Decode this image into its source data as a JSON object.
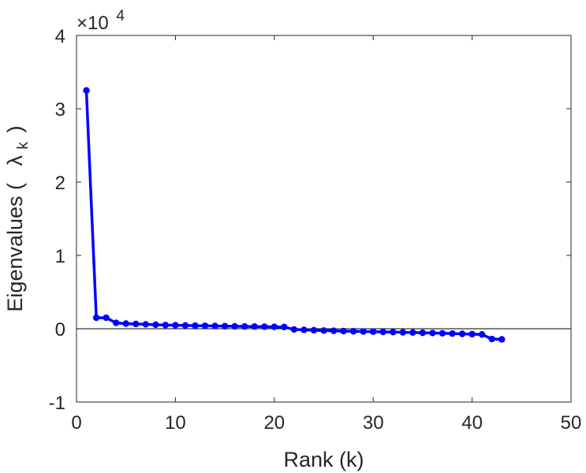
{
  "chart_data": {
    "type": "line",
    "title": "",
    "xlabel": "Rank (k)",
    "ylabel": {
      "prefix": "Eigenvalues (",
      "symbol": "λ",
      "subscript": "k",
      "suffix": ")"
    },
    "xlim": [
      0,
      50
    ],
    "ylim": [
      -10000,
      40000
    ],
    "xticks": [
      0,
      10,
      20,
      30,
      40,
      50
    ],
    "xtick_labels": [
      "0",
      "10",
      "20",
      "30",
      "40",
      "50"
    ],
    "yticks": [
      -10000,
      0,
      10000,
      20000,
      30000,
      40000
    ],
    "ytick_labels": [
      "-1",
      "0",
      "1",
      "2",
      "3",
      "4"
    ],
    "y_exponent": {
      "base": "×10",
      "power": "4"
    },
    "reference_line_y": 0,
    "grid": false,
    "legend": false,
    "series": [
      {
        "color": "#0000ff",
        "marker": "circle",
        "x": [
          1,
          2,
          3,
          4,
          5,
          6,
          7,
          8,
          9,
          10,
          11,
          12,
          13,
          14,
          15,
          16,
          17,
          18,
          19,
          20,
          21,
          22,
          23,
          24,
          25,
          26,
          27,
          28,
          29,
          30,
          31,
          32,
          33,
          34,
          35,
          36,
          37,
          38,
          39,
          40,
          41,
          42,
          43
        ],
        "y": [
          32500,
          1500,
          1500,
          800,
          700,
          650,
          600,
          550,
          500,
          480,
          450,
          420,
          400,
          380,
          350,
          330,
          310,
          300,
          280,
          260,
          240,
          -100,
          -150,
          -200,
          -250,
          -280,
          -320,
          -350,
          -380,
          -400,
          -430,
          -460,
          -490,
          -520,
          -550,
          -580,
          -620,
          -660,
          -700,
          -740,
          -780,
          -1400,
          -1450
        ]
      }
    ]
  }
}
